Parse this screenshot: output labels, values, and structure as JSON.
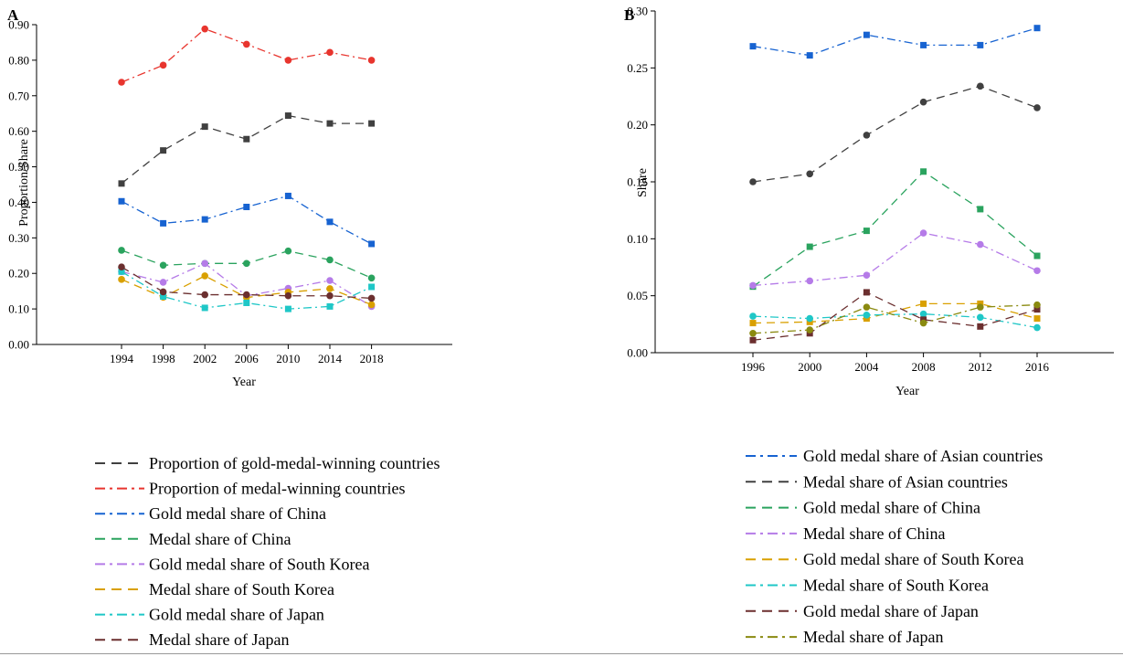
{
  "chart_data": [
    {
      "panel": "A",
      "type": "line",
      "xlabel": "Year",
      "ylabel": "Proportion/Share",
      "ylim": [
        0,
        0.9
      ],
      "y_ticks": [
        "0.00",
        "0.10",
        "0.20",
        "0.30",
        "0.40",
        "0.50",
        "0.60",
        "0.70",
        "0.80",
        "0.90"
      ],
      "x_ticks": [
        "1994",
        "1998",
        "2002",
        "2006",
        "2010",
        "2014",
        "2018"
      ],
      "x": [
        1994,
        1998,
        2002,
        2006,
        2010,
        2014,
        2018
      ],
      "series": [
        {
          "name": "Proportion of gold-medal-winning countries",
          "color": "#404040",
          "dash": "dash",
          "marker": "square",
          "values": [
            0.453,
            0.546,
            0.613,
            0.578,
            0.644,
            0.622,
            0.622
          ]
        },
        {
          "name": "Proportion of medal-winning countries",
          "color": "#e8352e",
          "dash": "dashdot",
          "marker": "circle",
          "values": [
            0.738,
            0.786,
            0.888,
            0.845,
            0.8,
            0.822,
            0.8
          ]
        },
        {
          "name": "Gold medal share of China",
          "color": "#1763d1",
          "dash": "dashdot",
          "marker": "square",
          "values": [
            0.403,
            0.341,
            0.352,
            0.387,
            0.418,
            0.345,
            0.283
          ]
        },
        {
          "name": "Medal share of China",
          "color": "#2aa35e",
          "dash": "dash",
          "marker": "circle",
          "values": [
            0.265,
            0.223,
            0.228,
            0.228,
            0.263,
            0.238,
            0.187
          ]
        },
        {
          "name": "Gold medal share of South Korea",
          "color": "#b57be8",
          "dash": "dashdot",
          "marker": "circle",
          "values": [
            0.205,
            0.175,
            0.228,
            0.137,
            0.158,
            0.18,
            0.107
          ]
        },
        {
          "name": "Medal share of South Korea",
          "color": "#d9a000",
          "dash": "dash",
          "marker": "circle",
          "values": [
            0.183,
            0.133,
            0.193,
            0.132,
            0.147,
            0.157,
            0.112
          ]
        },
        {
          "name": "Gold medal share of Japan",
          "color": "#1fc7c7",
          "dash": "dashdot",
          "marker": "square",
          "values": [
            0.205,
            0.135,
            0.103,
            0.117,
            0.1,
            0.107,
            0.162
          ]
        },
        {
          "name": "Medal share of Japan",
          "color": "#6b2f2f",
          "dash": "dash",
          "marker": "circle",
          "values": [
            0.218,
            0.148,
            0.14,
            0.14,
            0.137,
            0.137,
            0.13
          ]
        }
      ]
    },
    {
      "panel": "B",
      "type": "line",
      "xlabel": "Year",
      "ylabel": "Share",
      "ylim": [
        0,
        0.3
      ],
      "y_ticks": [
        "0.00",
        "0.05",
        "0.10",
        "0.15",
        "0.20",
        "0.25",
        "0.30"
      ],
      "x_ticks": [
        "1996",
        "2000",
        "2004",
        "2008",
        "2012",
        "2016"
      ],
      "x": [
        1996,
        2000,
        2004,
        2008,
        2012,
        2016
      ],
      "series": [
        {
          "name": "Gold medal share of Asian countries",
          "color": "#1763d1",
          "dash": "dashdot",
          "marker": "square",
          "values": [
            0.269,
            0.261,
            0.279,
            0.27,
            0.27,
            0.285
          ]
        },
        {
          "name": "Medal share of Asian countries",
          "color": "#404040",
          "dash": "dash",
          "marker": "circle",
          "values": [
            0.15,
            0.157,
            0.191,
            0.22,
            0.234,
            0.215
          ]
        },
        {
          "name": "Gold medal share of China",
          "color": "#2aa35e",
          "dash": "dash",
          "marker": "square",
          "values": [
            0.058,
            0.093,
            0.107,
            0.159,
            0.126,
            0.085
          ]
        },
        {
          "name": "Medal share of China",
          "color": "#b57be8",
          "dash": "dashdot",
          "marker": "circle",
          "values": [
            0.059,
            0.063,
            0.068,
            0.105,
            0.095,
            0.072
          ]
        },
        {
          "name": "Gold medal share of South Korea",
          "color": "#d9a000",
          "dash": "dash",
          "marker": "square",
          "values": [
            0.026,
            0.027,
            0.03,
            0.043,
            0.043,
            0.03
          ]
        },
        {
          "name": "Medal share of South Korea",
          "color": "#1fc7c7",
          "dash": "dashdot",
          "marker": "circle",
          "values": [
            0.032,
            0.03,
            0.033,
            0.034,
            0.031,
            0.022
          ]
        },
        {
          "name": "Gold medal share of Japan",
          "color": "#6b2f2f",
          "dash": "dash",
          "marker": "square",
          "values": [
            0.011,
            0.017,
            0.053,
            0.029,
            0.023,
            0.038
          ]
        },
        {
          "name": "Medal share of Japan",
          "color": "#8a8a10",
          "dash": "dashdot",
          "marker": "circle",
          "values": [
            0.017,
            0.02,
            0.04,
            0.026,
            0.04,
            0.042
          ]
        }
      ]
    }
  ]
}
